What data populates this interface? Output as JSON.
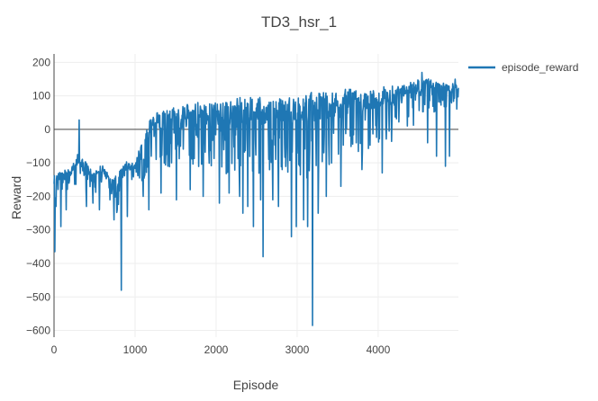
{
  "chart_data": {
    "type": "line",
    "title": "TD3_hsr_1",
    "xlabel": "Episode",
    "ylabel": "Reward",
    "xlim": [
      0,
      4990
    ],
    "ylim": [
      -620,
      225
    ],
    "x_ticks": [
      0,
      1000,
      2000,
      3000,
      4000
    ],
    "y_ticks": [
      -600,
      -500,
      -400,
      -300,
      -200,
      -100,
      0,
      100,
      200
    ],
    "grid": true,
    "zero_line": true,
    "legend_position": "top-right",
    "series": [
      {
        "name": "episode_reward",
        "color": "#1f77b4",
        "segments": [
          [
            0,
            -130,
            -250
          ],
          [
            100,
            -120,
            -180
          ],
          [
            200,
            -120,
            -180
          ],
          [
            300,
            -70,
            -160
          ],
          [
            400,
            -100,
            -190
          ],
          [
            500,
            -120,
            -190
          ],
          [
            600,
            -100,
            -180
          ],
          [
            700,
            -150,
            -200
          ],
          [
            800,
            -120,
            -280
          ],
          [
            900,
            -90,
            -140
          ],
          [
            1000,
            -100,
            -200
          ],
          [
            1100,
            -20,
            -150
          ],
          [
            1200,
            40,
            -110
          ],
          [
            1300,
            60,
            -130
          ],
          [
            1400,
            60,
            -140
          ],
          [
            1500,
            70,
            -130
          ],
          [
            1600,
            70,
            -120
          ],
          [
            1700,
            80,
            -130
          ],
          [
            1800,
            80,
            -120
          ],
          [
            1900,
            80,
            -120
          ],
          [
            2000,
            90,
            -140
          ],
          [
            2100,
            90,
            -130
          ],
          [
            2200,
            90,
            -140
          ],
          [
            2300,
            100,
            -140
          ],
          [
            2400,
            100,
            -150
          ],
          [
            2500,
            100,
            -160
          ],
          [
            2600,
            90,
            -120
          ],
          [
            2700,
            100,
            -130
          ],
          [
            2800,
            100,
            -120
          ],
          [
            2900,
            100,
            -140
          ],
          [
            3000,
            100,
            -140
          ],
          [
            3100,
            100,
            -160
          ],
          [
            3200,
            120,
            -160
          ],
          [
            3300,
            110,
            -120
          ],
          [
            3400,
            110,
            -110
          ],
          [
            3500,
            110,
            -80
          ],
          [
            3600,
            120,
            -60
          ],
          [
            3700,
            120,
            -70
          ],
          [
            3800,
            120,
            -70
          ],
          [
            3900,
            120,
            -60
          ],
          [
            4000,
            120,
            -40
          ],
          [
            4100,
            130,
            -30
          ],
          [
            4200,
            130,
            -40
          ],
          [
            4300,
            130,
            -20
          ],
          [
            4400,
            140,
            -20
          ],
          [
            4500,
            150,
            20
          ],
          [
            4600,
            150,
            40
          ],
          [
            4700,
            150,
            50
          ],
          [
            4800,
            140,
            60
          ],
          [
            4900,
            140,
            60
          ],
          [
            4990,
            130,
            60
          ]
        ],
        "spikes": [
          [
            10,
            -365
          ],
          [
            85,
            -290
          ],
          [
            150,
            -240
          ],
          [
            310,
            28
          ],
          [
            400,
            -230
          ],
          [
            480,
            -220
          ],
          [
            560,
            -240
          ],
          [
            690,
            -210
          ],
          [
            740,
            -270
          ],
          [
            830,
            -480
          ],
          [
            905,
            -260
          ],
          [
            1100,
            -200
          ],
          [
            1170,
            -240
          ],
          [
            1320,
            -190
          ],
          [
            1510,
            -210
          ],
          [
            1680,
            -180
          ],
          [
            1840,
            -200
          ],
          [
            2040,
            -220
          ],
          [
            2160,
            -190
          ],
          [
            2290,
            -200
          ],
          [
            2330,
            -250
          ],
          [
            2390,
            -230
          ],
          [
            2460,
            -290
          ],
          [
            2550,
            -210
          ],
          [
            2580,
            -380
          ],
          [
            2700,
            -210
          ],
          [
            2770,
            -230
          ],
          [
            2930,
            -320
          ],
          [
            2990,
            -290
          ],
          [
            3080,
            -270
          ],
          [
            3130,
            -290
          ],
          [
            3190,
            -585
          ],
          [
            3260,
            -250
          ],
          [
            3360,
            -200
          ],
          [
            3540,
            -170
          ],
          [
            3800,
            -120
          ],
          [
            4050,
            -130
          ],
          [
            4540,
            -50
          ],
          [
            4610,
            -40
          ],
          [
            4720,
            -80
          ],
          [
            4830,
            -110
          ],
          [
            4880,
            -80
          ],
          [
            4540,
            170
          ],
          [
            4620,
            150
          ],
          [
            4950,
            150
          ]
        ]
      }
    ]
  }
}
